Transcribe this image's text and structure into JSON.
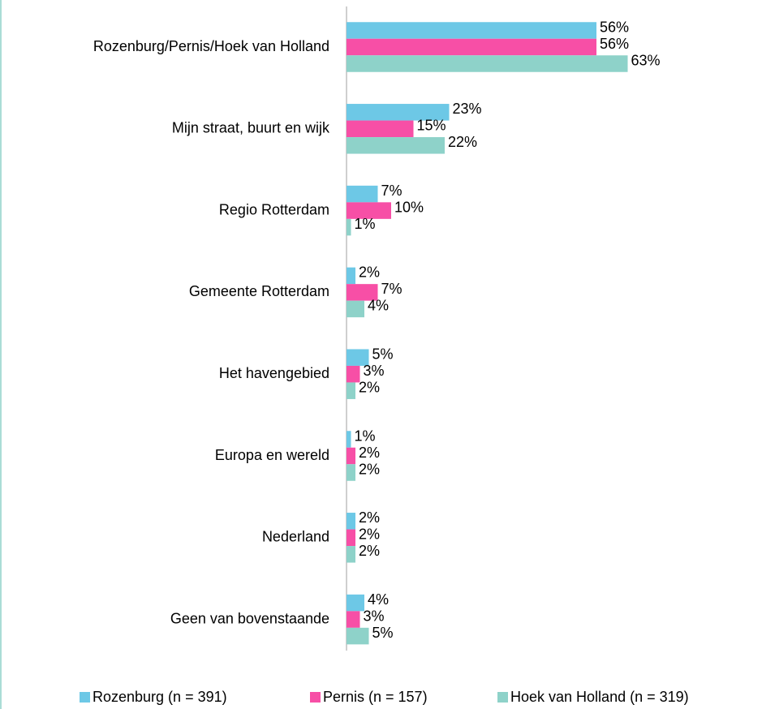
{
  "chart_data": {
    "type": "bar",
    "orientation": "horizontal",
    "categories": [
      "Rozenburg/Pernis/Hoek van Holland",
      "Mijn straat, buurt en wijk",
      "Regio Rotterdam",
      "Gemeente Rotterdam",
      "Het havengebied",
      "Europa en wereld",
      "Nederland",
      "Geen van bovenstaande"
    ],
    "series": [
      {
        "name": "Rozenburg (n = 391)",
        "color": "#6dc8e6",
        "values": [
          56,
          23,
          7,
          2,
          5,
          1,
          2,
          4
        ],
        "value_labels": [
          "56%",
          "23%",
          "7%",
          "2%",
          "5%",
          "1%",
          "2%",
          "4%"
        ]
      },
      {
        "name": "Pernis (n = 157)",
        "color": "#f74fa6",
        "values": [
          56,
          15,
          10,
          7,
          3,
          2,
          2,
          3
        ],
        "value_labels": [
          "56%",
          "15%",
          "10%",
          "7%",
          "3%",
          "2%",
          "2%",
          "3%"
        ]
      },
      {
        "name": "Hoek van Holland (n = 319)",
        "color": "#8ed2c9",
        "values": [
          63,
          22,
          1,
          4,
          2,
          2,
          2,
          5
        ],
        "value_labels": [
          "63%",
          "22%",
          "1%",
          "4%",
          "2%",
          "2%",
          "2%",
          "5%"
        ]
      }
    ],
    "xlim": [
      0,
      80
    ],
    "legend": "bottom"
  }
}
